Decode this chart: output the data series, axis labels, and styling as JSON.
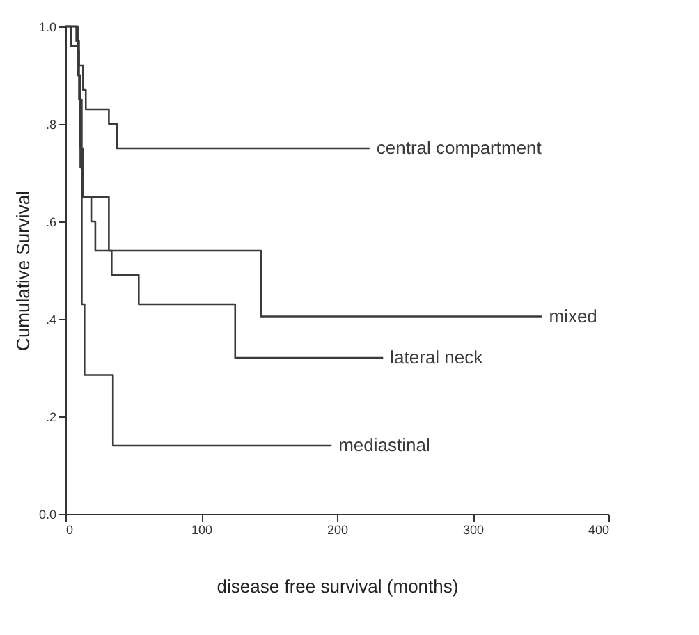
{
  "chart_data": {
    "type": "step",
    "xlabel": "disease free survival (months)",
    "ylabel": "Cumulative Survival",
    "xlim": [
      0,
      400
    ],
    "xticks": [
      0,
      100,
      200,
      300,
      400
    ],
    "ylim": [
      0,
      1
    ],
    "yticks": [
      {
        "value": 0,
        "label": "0.0"
      },
      {
        "value": 0.2,
        "label": ".2"
      },
      {
        "value": 0.4,
        "label": ".4"
      },
      {
        "value": 0.6,
        "label": ".6"
      },
      {
        "value": 0.8,
        "label": ".8"
      },
      {
        "value": 1,
        "label": "1.0"
      }
    ],
    "grid": false,
    "legend": false,
    "line_style": "solid",
    "marker": "none",
    "series": [
      {
        "name": "central compartment",
        "color": "#3a3a3a",
        "x": [
          0,
          8,
          10,
          13,
          15,
          17,
          32,
          38,
          224
        ],
        "values": [
          1,
          0.97,
          0.92,
          0.87,
          0.83,
          0.83,
          0.8,
          0.75,
          0.75
        ]
      },
      {
        "name": "mixed",
        "color": "#3a3a3a",
        "x": [
          0,
          4,
          9,
          11,
          13,
          32,
          144,
          351
        ],
        "values": [
          1,
          0.96,
          0.9,
          0.75,
          0.65,
          0.54,
          0.405,
          0.405
        ]
      },
      {
        "name": "lateral neck",
        "color": "#3a3a3a",
        "x": [
          0,
          9,
          10,
          12,
          13,
          19,
          22,
          34,
          54,
          125,
          234
        ],
        "values": [
          1,
          0.95,
          0.85,
          0.71,
          0.65,
          0.6,
          0.54,
          0.49,
          0.43,
          0.32,
          0.32
        ]
      },
      {
        "name": "mediastinal",
        "color": "#3a3a3a",
        "x": [
          0,
          9,
          11,
          12,
          14,
          35,
          196
        ],
        "values": [
          1,
          0.9,
          0.71,
          0.43,
          0.285,
          0.14,
          0.14
        ]
      }
    ]
  }
}
